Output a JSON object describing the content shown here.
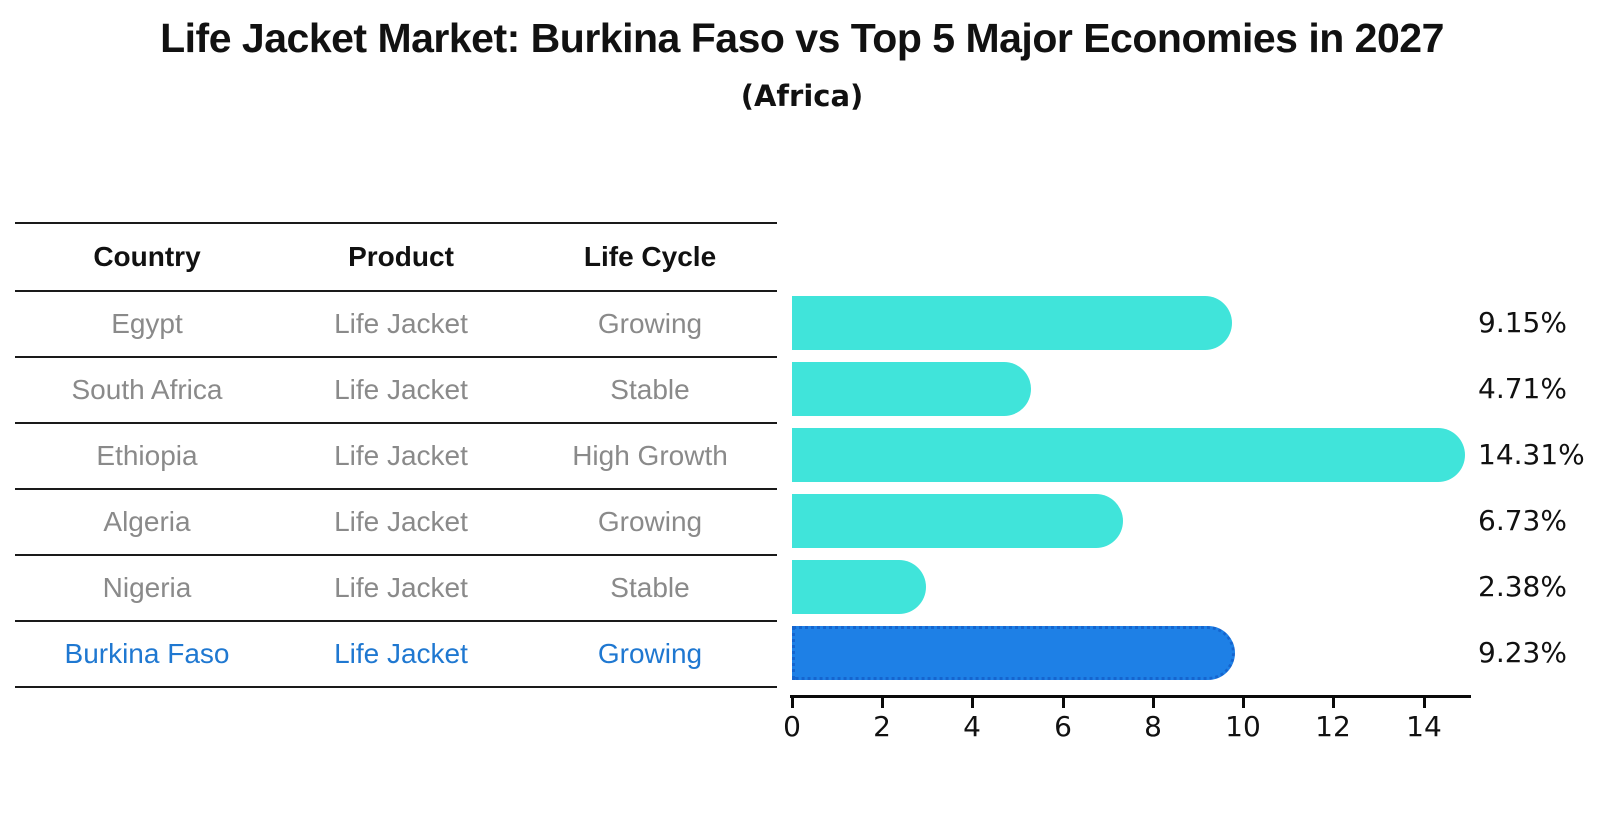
{
  "title": "Life Jacket Market: Burkina Faso vs Top 5 Major Economies in 2027",
  "subtitle": "(Africa)",
  "table": {
    "headers": [
      "Country",
      "Product",
      "Life Cycle"
    ],
    "rows": [
      {
        "country": "Egypt",
        "product": "Life Jacket",
        "life_cycle": "Growing",
        "highlight": false
      },
      {
        "country": "South Africa",
        "product": "Life Jacket",
        "life_cycle": "Stable",
        "highlight": false
      },
      {
        "country": "Ethiopia",
        "product": "Life Jacket",
        "life_cycle": "High Growth",
        "highlight": false
      },
      {
        "country": "Algeria",
        "product": "Life Jacket",
        "life_cycle": "Growing",
        "highlight": false
      },
      {
        "country": "Nigeria",
        "product": "Life Jacket",
        "life_cycle": "Stable",
        "highlight": false
      },
      {
        "country": "Burkina Faso",
        "product": "Life Jacket",
        "life_cycle": "Growing",
        "highlight": true
      }
    ]
  },
  "chart_data": {
    "type": "bar",
    "orientation": "horizontal",
    "categories": [
      "Egypt",
      "South Africa",
      "Ethiopia",
      "Algeria",
      "Nigeria",
      "Burkina Faso"
    ],
    "values": [
      9.15,
      4.71,
      14.31,
      6.73,
      2.38,
      9.23
    ],
    "value_labels": [
      "9.15%",
      "4.71%",
      "14.31%",
      "6.73%",
      "2.38%",
      "9.23%"
    ],
    "highlight_index": 5,
    "x_ticks": [
      0,
      2,
      4,
      6,
      8,
      10,
      12,
      14
    ],
    "xlim": [
      0,
      15.03
    ],
    "grid": false,
    "legend": "none",
    "bar_color": "#40e4da",
    "highlight_bar_color": "#1e80e6",
    "highlight_border_color": "#1565cf",
    "highlight_text_color": "#1f78d1",
    "row_text_color": "#8a8a8a",
    "axis_color": "#0a0a0a"
  }
}
